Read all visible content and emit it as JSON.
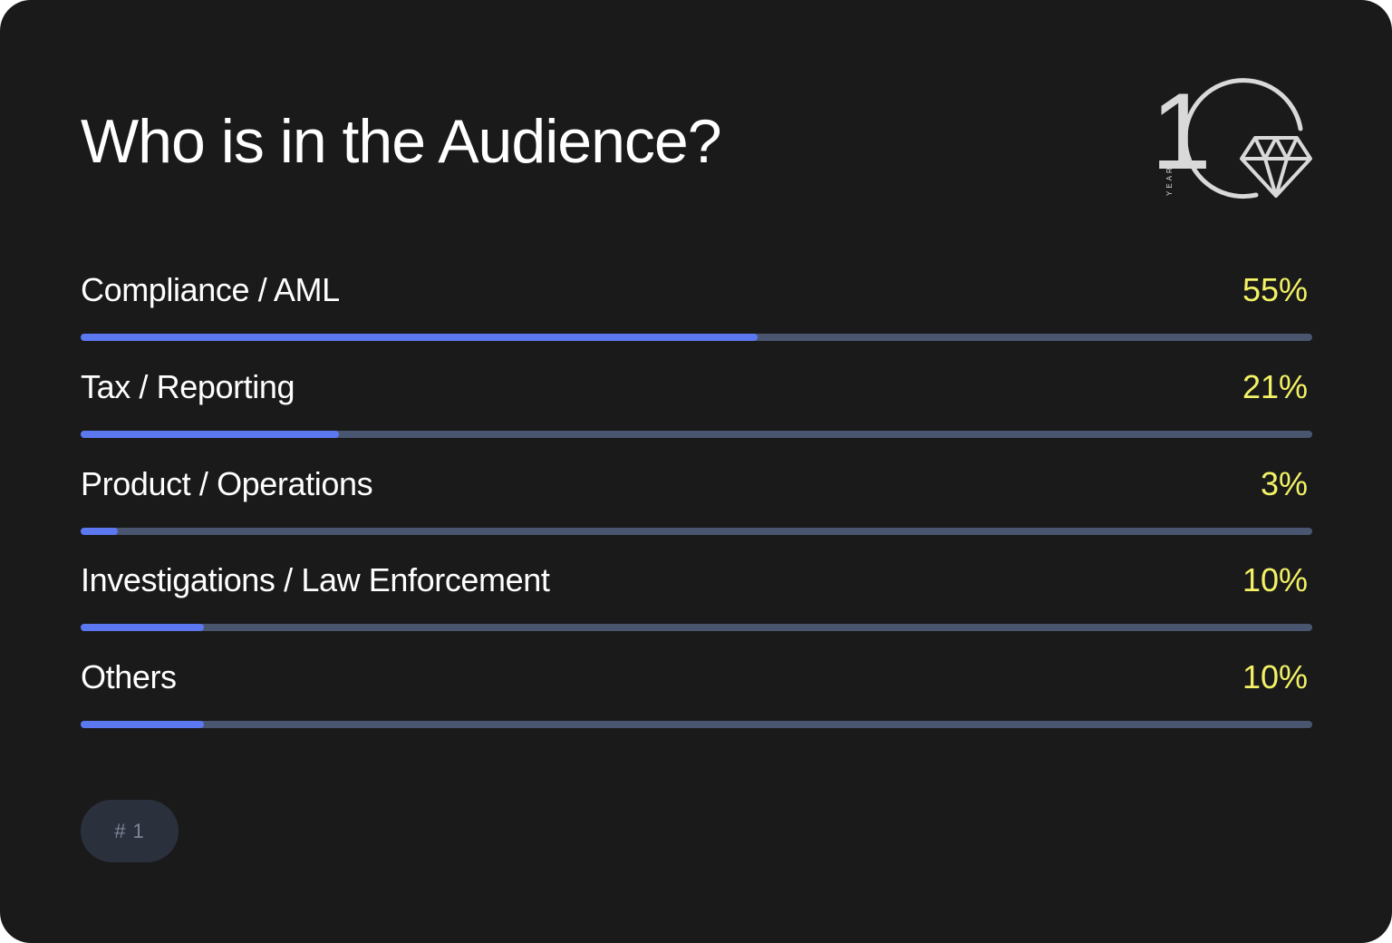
{
  "title": "Who is in the Audience?",
  "logo": {
    "digit": "1",
    "caption": "YEARS",
    "icon": "diamond-icon",
    "color": "#d9d9d9"
  },
  "badge": "# 1",
  "colors": {
    "background": "#1a1a1b",
    "bar_fill": "#5b78f1",
    "bar_track": "#4a5670",
    "value_text": "#f3f265"
  },
  "chart_data": {
    "type": "bar",
    "orientation": "horizontal",
    "categories": [
      "Compliance / AML",
      "Tax / Reporting",
      "Product / Operations",
      "Investigations / Law Enforcement",
      "Others"
    ],
    "values": [
      55,
      21,
      3,
      10,
      10
    ],
    "value_labels": [
      "55%",
      "21%",
      "3%",
      "10%",
      "10%"
    ],
    "unit": "%",
    "xlim": [
      0,
      100
    ],
    "grid": false,
    "legend": "none"
  }
}
